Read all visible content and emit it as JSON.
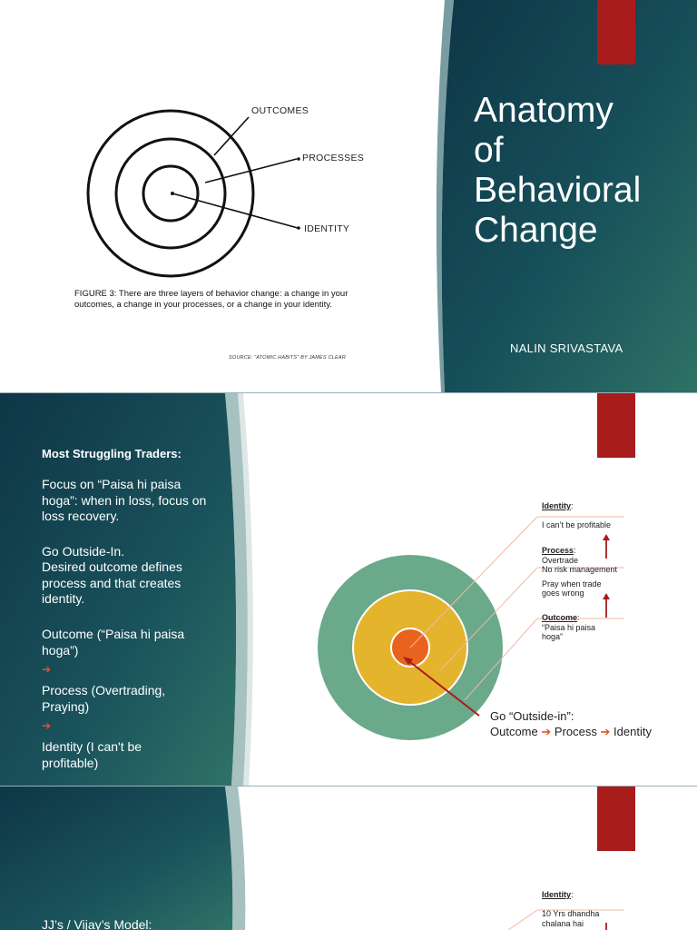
{
  "slide1": {
    "title_lines": [
      "Anatomy",
      "of",
      "Behavioral",
      "Change"
    ],
    "author": "NALIN SRIVASTAVA",
    "figure": {
      "labels": [
        "OUTCOMES",
        "PROCESSES",
        "IDENTITY"
      ],
      "caption": "FIGURE 3: There are three layers of behavior change: a change in your outcomes, a change in your processes, or a change in your identity.",
      "source": "SOURCE: \"ATOMIC HABITS\" BY JAMES CLEAR"
    }
  },
  "slide2": {
    "heading": "Most Struggling Traders:",
    "para1": "Focus on “Paisa hi paisa hoga”: when in loss, focus on loss recovery.",
    "para2a": "Go Outside-In.",
    "para2b": "Desired outcome defines process and that creates identity.",
    "step1": "Outcome (“Paisa hi paisa hoga”)",
    "step2": "Process (Overtrading, Praying)",
    "step3": "Identity (I can't be profitable)",
    "arrow": "➔",
    "notes": {
      "identity_label": "Identity",
      "identity_text": "I can’t be profitable",
      "process_label": "Process",
      "process_lines": [
        "Overtrade",
        "No risk management",
        "Pray when trade",
        "goes wrong"
      ],
      "outcome_label": "Outcome",
      "outcome_lines": [
        "“Paisa hi paisa",
        "hoga”"
      ]
    },
    "go_line1": "Go “Outside-in”:",
    "go_outcome": "Outcome",
    "go_process": "Process",
    "go_identity": "Identity",
    "colors": {
      "outer": "#6aa98a",
      "middle": "#e5b42d",
      "inner": "#e8631e",
      "arrow": "#a81c1c"
    }
  },
  "slide3": {
    "heading": "JJ’s / Vijay’s Model:",
    "identity_label": "Identity",
    "identity_lines": [
      "10 Yrs dhandha",
      "chalana hai"
    ]
  }
}
